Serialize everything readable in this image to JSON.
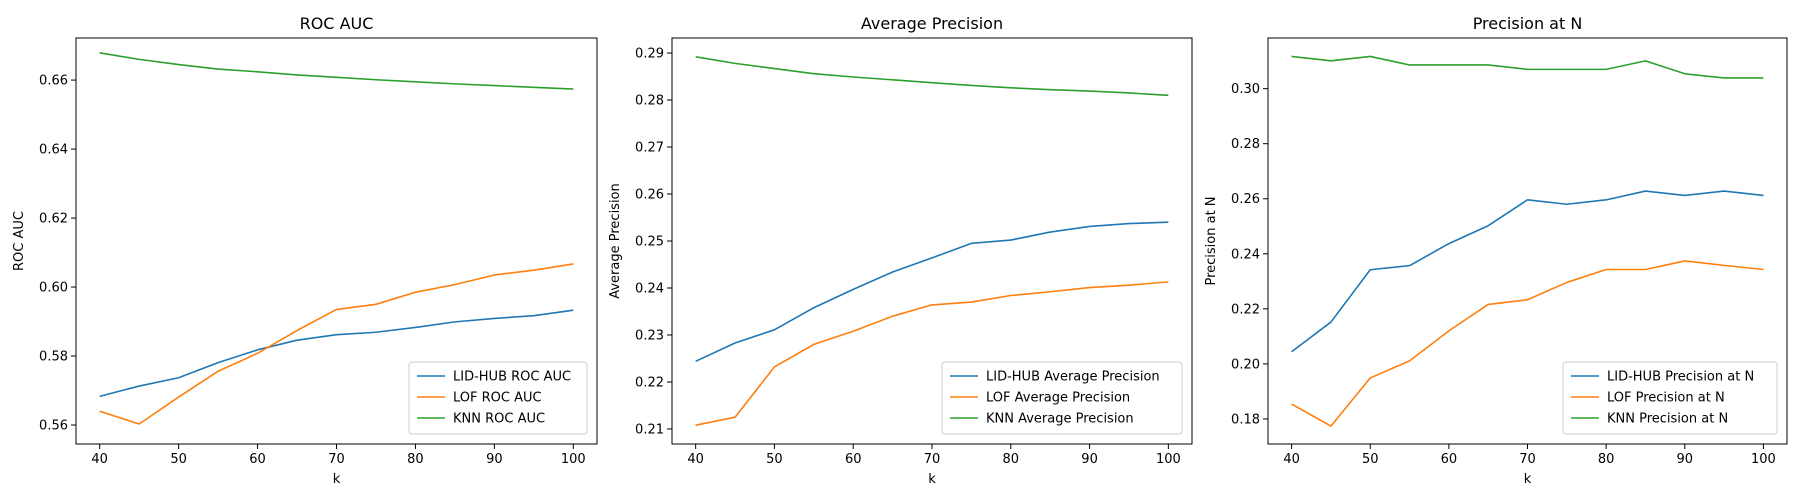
{
  "chart_data": [
    {
      "type": "line",
      "title": "ROC AUC",
      "xlabel": "k",
      "ylabel": "ROC AUC",
      "x": [
        40,
        45,
        50,
        55,
        60,
        65,
        70,
        75,
        80,
        85,
        90,
        95,
        100
      ],
      "xlim": [
        37,
        103
      ],
      "ylim": [
        0.5545,
        0.6722
      ],
      "xticks": [
        40,
        50,
        60,
        70,
        80,
        90,
        100
      ],
      "yticks": [
        0.56,
        0.58,
        0.6,
        0.62,
        0.64,
        0.66
      ],
      "ytick_labels": [
        "0.56",
        "0.58",
        "0.60",
        "0.62",
        "0.64",
        "0.66"
      ],
      "legend_position": "lower-right",
      "grid": false,
      "series": [
        {
          "name": "LID-HUB ROC AUC",
          "color": "#1f77b4",
          "values": [
            0.5683,
            0.5713,
            0.5737,
            0.5781,
            0.5818,
            0.5846,
            0.5862,
            0.5869,
            0.5883,
            0.5899,
            0.5909,
            0.5917,
            0.5933
          ]
        },
        {
          "name": "LOF ROC AUC",
          "color": "#ff7f0e",
          "values": [
            0.564,
            0.5603,
            0.5681,
            0.5756,
            0.5808,
            0.5874,
            0.5935,
            0.595,
            0.5985,
            0.6007,
            0.6035,
            0.6049,
            0.6067
          ]
        },
        {
          "name": "KNN ROC AUC",
          "color": "#2ca02c",
          "values": [
            0.6679,
            0.666,
            0.6645,
            0.6632,
            0.6624,
            0.6615,
            0.6608,
            0.6601,
            0.6595,
            0.6589,
            0.6584,
            0.6579,
            0.6574
          ]
        }
      ]
    },
    {
      "type": "line",
      "title": "Average Precision",
      "xlabel": "k",
      "ylabel": "Average Precision",
      "x": [
        40,
        45,
        50,
        55,
        60,
        65,
        70,
        75,
        80,
        85,
        90,
        95,
        100
      ],
      "xlim": [
        37,
        103
      ],
      "ylim": [
        0.2068,
        0.2932
      ],
      "xticks": [
        40,
        50,
        60,
        70,
        80,
        90,
        100
      ],
      "yticks": [
        0.21,
        0.22,
        0.23,
        0.24,
        0.25,
        0.26,
        0.27,
        0.28,
        0.29
      ],
      "ytick_labels": [
        "0.21",
        "0.22",
        "0.23",
        "0.24",
        "0.25",
        "0.26",
        "0.27",
        "0.28",
        "0.29"
      ],
      "legend_position": "lower-right",
      "grid": false,
      "series": [
        {
          "name": "LID-HUB Average Precision",
          "color": "#1f77b4",
          "values": [
            0.2244,
            0.2283,
            0.2311,
            0.2358,
            0.2397,
            0.2434,
            0.2464,
            0.2495,
            0.2502,
            0.2519,
            0.2531,
            0.2537,
            0.254
          ]
        },
        {
          "name": "LOF Average Precision",
          "color": "#ff7f0e",
          "values": [
            0.2108,
            0.2125,
            0.2232,
            0.228,
            0.2308,
            0.234,
            0.2364,
            0.237,
            0.2384,
            0.2392,
            0.2401,
            0.2406,
            0.2413
          ]
        },
        {
          "name": "KNN Average Precision",
          "color": "#2ca02c",
          "values": [
            0.2892,
            0.2878,
            0.2867,
            0.2856,
            0.2849,
            0.2843,
            0.2837,
            0.2831,
            0.2826,
            0.2822,
            0.2819,
            0.2815,
            0.281
          ]
        }
      ]
    },
    {
      "type": "line",
      "title": "Precision at N",
      "xlabel": "k",
      "ylabel": "Precision at N",
      "x": [
        40,
        45,
        50,
        55,
        60,
        65,
        70,
        75,
        80,
        85,
        90,
        95,
        100
      ],
      "xlim": [
        37,
        103
      ],
      "ylim": [
        0.1709,
        0.3184
      ],
      "xticks": [
        40,
        50,
        60,
        70,
        80,
        90,
        100
      ],
      "yticks": [
        0.18,
        0.2,
        0.22,
        0.24,
        0.26,
        0.28,
        0.3
      ],
      "ytick_labels": [
        "0.18",
        "0.20",
        "0.22",
        "0.24",
        "0.26",
        "0.28",
        "0.30"
      ],
      "legend_position": "lower-right",
      "grid": false,
      "series": [
        {
          "name": "LID-HUB Precision at N",
          "color": "#1f77b4",
          "values": [
            0.2044,
            0.2152,
            0.2342,
            0.2357,
            0.2437,
            0.2502,
            0.2596,
            0.258,
            0.2596,
            0.2628,
            0.2612,
            0.2628,
            0.2612
          ]
        },
        {
          "name": "LOF Precision at N",
          "color": "#ff7f0e",
          "values": [
            0.1854,
            0.1774,
            0.1949,
            0.2011,
            0.212,
            0.2216,
            0.2233,
            0.2296,
            0.2343,
            0.2343,
            0.2374,
            0.2358,
            0.2343
          ]
        },
        {
          "name": "KNN Precision at N",
          "color": "#2ca02c",
          "values": [
            0.3117,
            0.3101,
            0.3117,
            0.3086,
            0.3086,
            0.3086,
            0.307,
            0.307,
            0.307,
            0.3101,
            0.3054,
            0.3039,
            0.3039
          ]
        }
      ]
    }
  ]
}
